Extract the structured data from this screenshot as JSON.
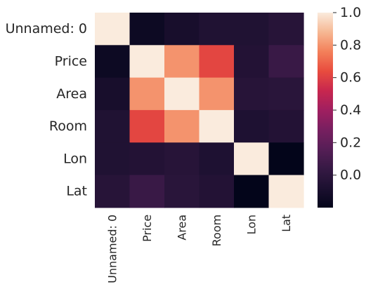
{
  "chart_data": {
    "type": "heatmap",
    "title": "",
    "xlabel": "",
    "ylabel": "",
    "row_labels": [
      "Unnamed: 0",
      "Price",
      "Area",
      "Room",
      "Lon",
      "Lat"
    ],
    "col_labels": [
      "Unnamed: 0",
      "Price",
      "Area",
      "Room",
      "Lon",
      "Lat"
    ],
    "values": [
      [
        1.0,
        -0.15,
        -0.1,
        -0.06,
        -0.06,
        -0.03
      ],
      [
        -0.15,
        1.0,
        0.8,
        0.62,
        -0.05,
        0.05
      ],
      [
        -0.1,
        0.8,
        1.0,
        0.8,
        -0.03,
        -0.02
      ],
      [
        -0.06,
        0.62,
        0.8,
        1.0,
        -0.07,
        -0.05
      ],
      [
        -0.06,
        -0.05,
        -0.03,
        -0.07,
        1.0,
        -0.2
      ],
      [
        -0.03,
        0.05,
        -0.02,
        -0.05,
        -0.2,
        1.0
      ]
    ],
    "colorbar": {
      "min": -0.2,
      "max": 1.0,
      "ticks": [
        "0.0",
        "0.2",
        "0.4",
        "0.6",
        "0.8",
        "1.0"
      ],
      "tick_values": [
        0.0,
        0.2,
        0.4,
        0.6,
        0.8,
        1.0
      ]
    },
    "colormap": "rocket",
    "grid": false
  }
}
